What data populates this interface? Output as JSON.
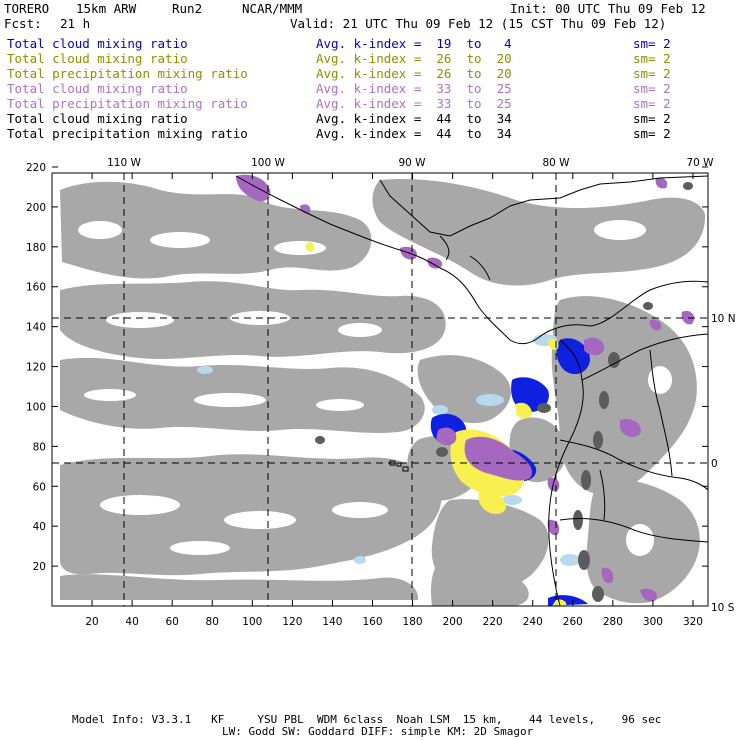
{
  "header": {
    "model": "TORERO",
    "resolution": "15km ARW",
    "run": "Run2",
    "org": "NCAR/MMM",
    "init": "Init: 00 UTC Thu 09 Feb 12",
    "fcst_label": "Fcst:",
    "fcst_value": "21 h",
    "valid": "Valid: 21 UTC Thu 09 Feb 12 (15 CST Thu 09 Feb 12)"
  },
  "legend": [
    {
      "field": "Total cloud mixing ratio",
      "kindex": "Avg. k-index =  19  to   4",
      "sm": "sm= 2",
      "color": "#0000cc"
    },
    {
      "field": "Total cloud mixing ratio",
      "kindex": "Avg. k-index =  26  to  20",
      "sm": "sm= 2",
      "color": "#8f8f00"
    },
    {
      "field": "Total precipitation mixing ratio",
      "kindex": "Avg. k-index =  26  to  20",
      "sm": "sm= 2",
      "color": "#8f8f00"
    },
    {
      "field": "Total cloud mixing ratio",
      "kindex": "Avg. k-index =  33  to  25",
      "sm": "sm= 2",
      "color": "#b070c8"
    },
    {
      "field": "Total precipitation mixing ratio",
      "kindex": "Avg. k-index =  33  to  25",
      "sm": "sm= 2",
      "color": "#b070c8"
    },
    {
      "field": "Total cloud mixing ratio",
      "kindex": "Avg. k-index =  44  to  34",
      "sm": "sm= 2",
      "color": "#000000"
    },
    {
      "field": "Total precipitation mixing ratio",
      "kindex": "Avg. k-index =  44  to  34",
      "sm": "sm= 2",
      "color": "#000000"
    }
  ],
  "axes": {
    "longitude_labels": [
      "110 W",
      "100 W",
      "90 W",
      "80 W",
      "70 W"
    ],
    "latitude_labels": [
      "10 N",
      "0",
      "10 S"
    ],
    "x_ticks": [
      "20",
      "40",
      "60",
      "80",
      "100",
      "120",
      "140",
      "160",
      "180",
      "200",
      "220",
      "240",
      "260",
      "280",
      "300",
      "320"
    ],
    "y_ticks": [
      "220",
      "200",
      "180",
      "160",
      "140",
      "120",
      "100",
      "80",
      "60",
      "40",
      "20"
    ]
  },
  "footer": {
    "line1": "Model Info: V3.3.1   KF     YSU PBL  WDM 6class  Noah LSM  15 km,    44 levels,    96 sec",
    "line2": "LW: Godd SW: Goddard DIFF: simple KM: 2D Smagor"
  },
  "colors": {
    "cloud_gray": "#a8a8a8",
    "cloud_dark": "#707070",
    "light_blue": "#b8d8f0",
    "blue": "#1020e0",
    "yellow": "#f8f050",
    "purple": "#a468c0",
    "coast": "#000000"
  }
}
